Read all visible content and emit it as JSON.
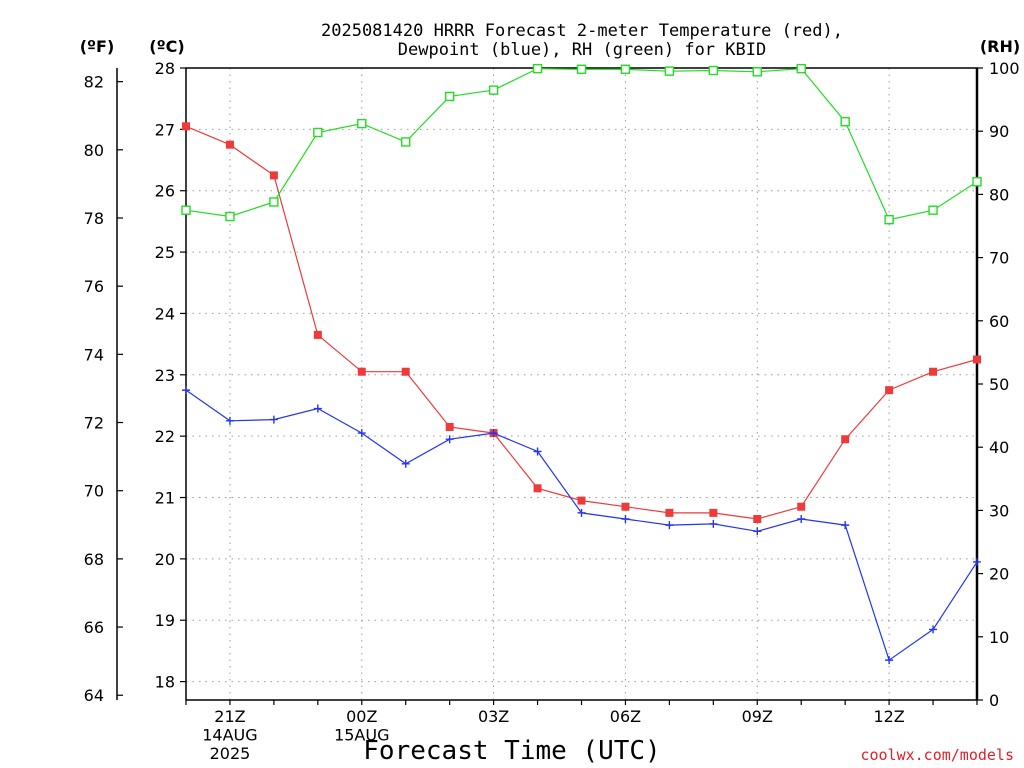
{
  "chart_data": {
    "type": "line",
    "title_lines": [
      "2025081420 HRRR Forecast 2-meter Temperature (red),",
      "Dewpoint (blue), RH (green) for KBID"
    ],
    "xlabel": "Forecast Time (UTC)",
    "credit": "coolwx.com/models",
    "axis_units": {
      "fahrenheit": "(ºF)",
      "celsius": "(ºC)",
      "rh": "(RH)"
    },
    "x_hours": [
      0,
      1,
      2,
      3,
      4,
      5,
      6,
      7,
      8,
      9,
      10,
      11,
      12,
      13,
      14,
      15,
      16,
      17,
      18
    ],
    "x_tick_labels": [
      {
        "hour": 1,
        "lines": [
          "21Z",
          "14AUG",
          "2025"
        ]
      },
      {
        "hour": 4,
        "lines": [
          "00Z",
          "15AUG"
        ]
      },
      {
        "hour": 7,
        "lines": [
          "03Z"
        ]
      },
      {
        "hour": 10,
        "lines": [
          "06Z"
        ]
      },
      {
        "hour": 13,
        "lines": [
          "09Z"
        ]
      },
      {
        "hour": 16,
        "lines": [
          "12Z"
        ]
      }
    ],
    "celsius_axis": {
      "range": [
        17.7,
        28.0
      ],
      "ticks": [
        18,
        19,
        20,
        21,
        22,
        23,
        24,
        25,
        26,
        27,
        28
      ]
    },
    "fahrenheit_axis": {
      "ticks": [
        64,
        66,
        68,
        70,
        72,
        74,
        76,
        78,
        80,
        82
      ]
    },
    "rh_axis": {
      "range": [
        0,
        100
      ],
      "ticks": [
        0,
        10,
        20,
        30,
        40,
        50,
        60,
        70,
        80,
        90,
        100
      ]
    },
    "series": [
      {
        "name": "Temperature",
        "axis": "celsius",
        "color": "#ee3a3a",
        "marker": "filled-square",
        "values": [
          27.05,
          26.75,
          26.25,
          23.65,
          23.05,
          23.05,
          22.15,
          22.05,
          21.15,
          20.95,
          20.85,
          20.75,
          20.75,
          20.65,
          20.85,
          21.95,
          22.75,
          23.05,
          23.25
        ]
      },
      {
        "name": "Dewpoint",
        "axis": "celsius",
        "color": "#2236ee",
        "marker": "plus",
        "values": [
          22.75,
          22.25,
          22.27,
          22.45,
          22.05,
          21.55,
          21.95,
          22.05,
          21.75,
          20.75,
          20.65,
          20.55,
          20.57,
          20.45,
          20.65,
          20.55,
          18.35,
          18.85,
          19.95
        ]
      },
      {
        "name": "RH",
        "axis": "rh",
        "color": "#22dd22",
        "marker": "open-square",
        "values": [
          77.5,
          76.5,
          78.8,
          89.8,
          91.2,
          88.3,
          95.5,
          96.5,
          99.9,
          99.8,
          99.8,
          99.5,
          99.6,
          99.4,
          99.9,
          91.5,
          76.0,
          77.5,
          82.0
        ]
      }
    ]
  }
}
